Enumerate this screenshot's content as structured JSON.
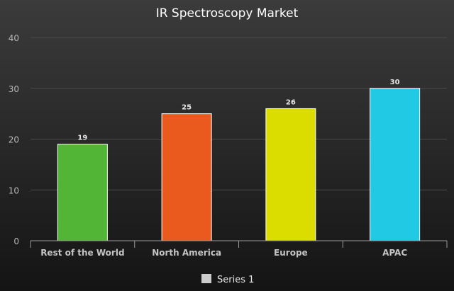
{
  "chart_data": {
    "type": "bar",
    "title": "IR Spectroscopy Market",
    "xlabel": "",
    "ylabel": "",
    "categories": [
      "Rest of the World",
      "North America",
      "Europe",
      "APAC"
    ],
    "series": [
      {
        "name": "Series 1",
        "values": [
          19,
          25,
          26,
          30
        ],
        "colors": [
          "#52b535",
          "#ea5a1e",
          "#dbdc00",
          "#22c9e4"
        ]
      }
    ],
    "ylim": [
      0,
      40
    ],
    "yticks": [
      0,
      10,
      20,
      30,
      40
    ],
    "grid": true,
    "legend": "bottom",
    "legend_swatch_color": "#cccccc"
  }
}
